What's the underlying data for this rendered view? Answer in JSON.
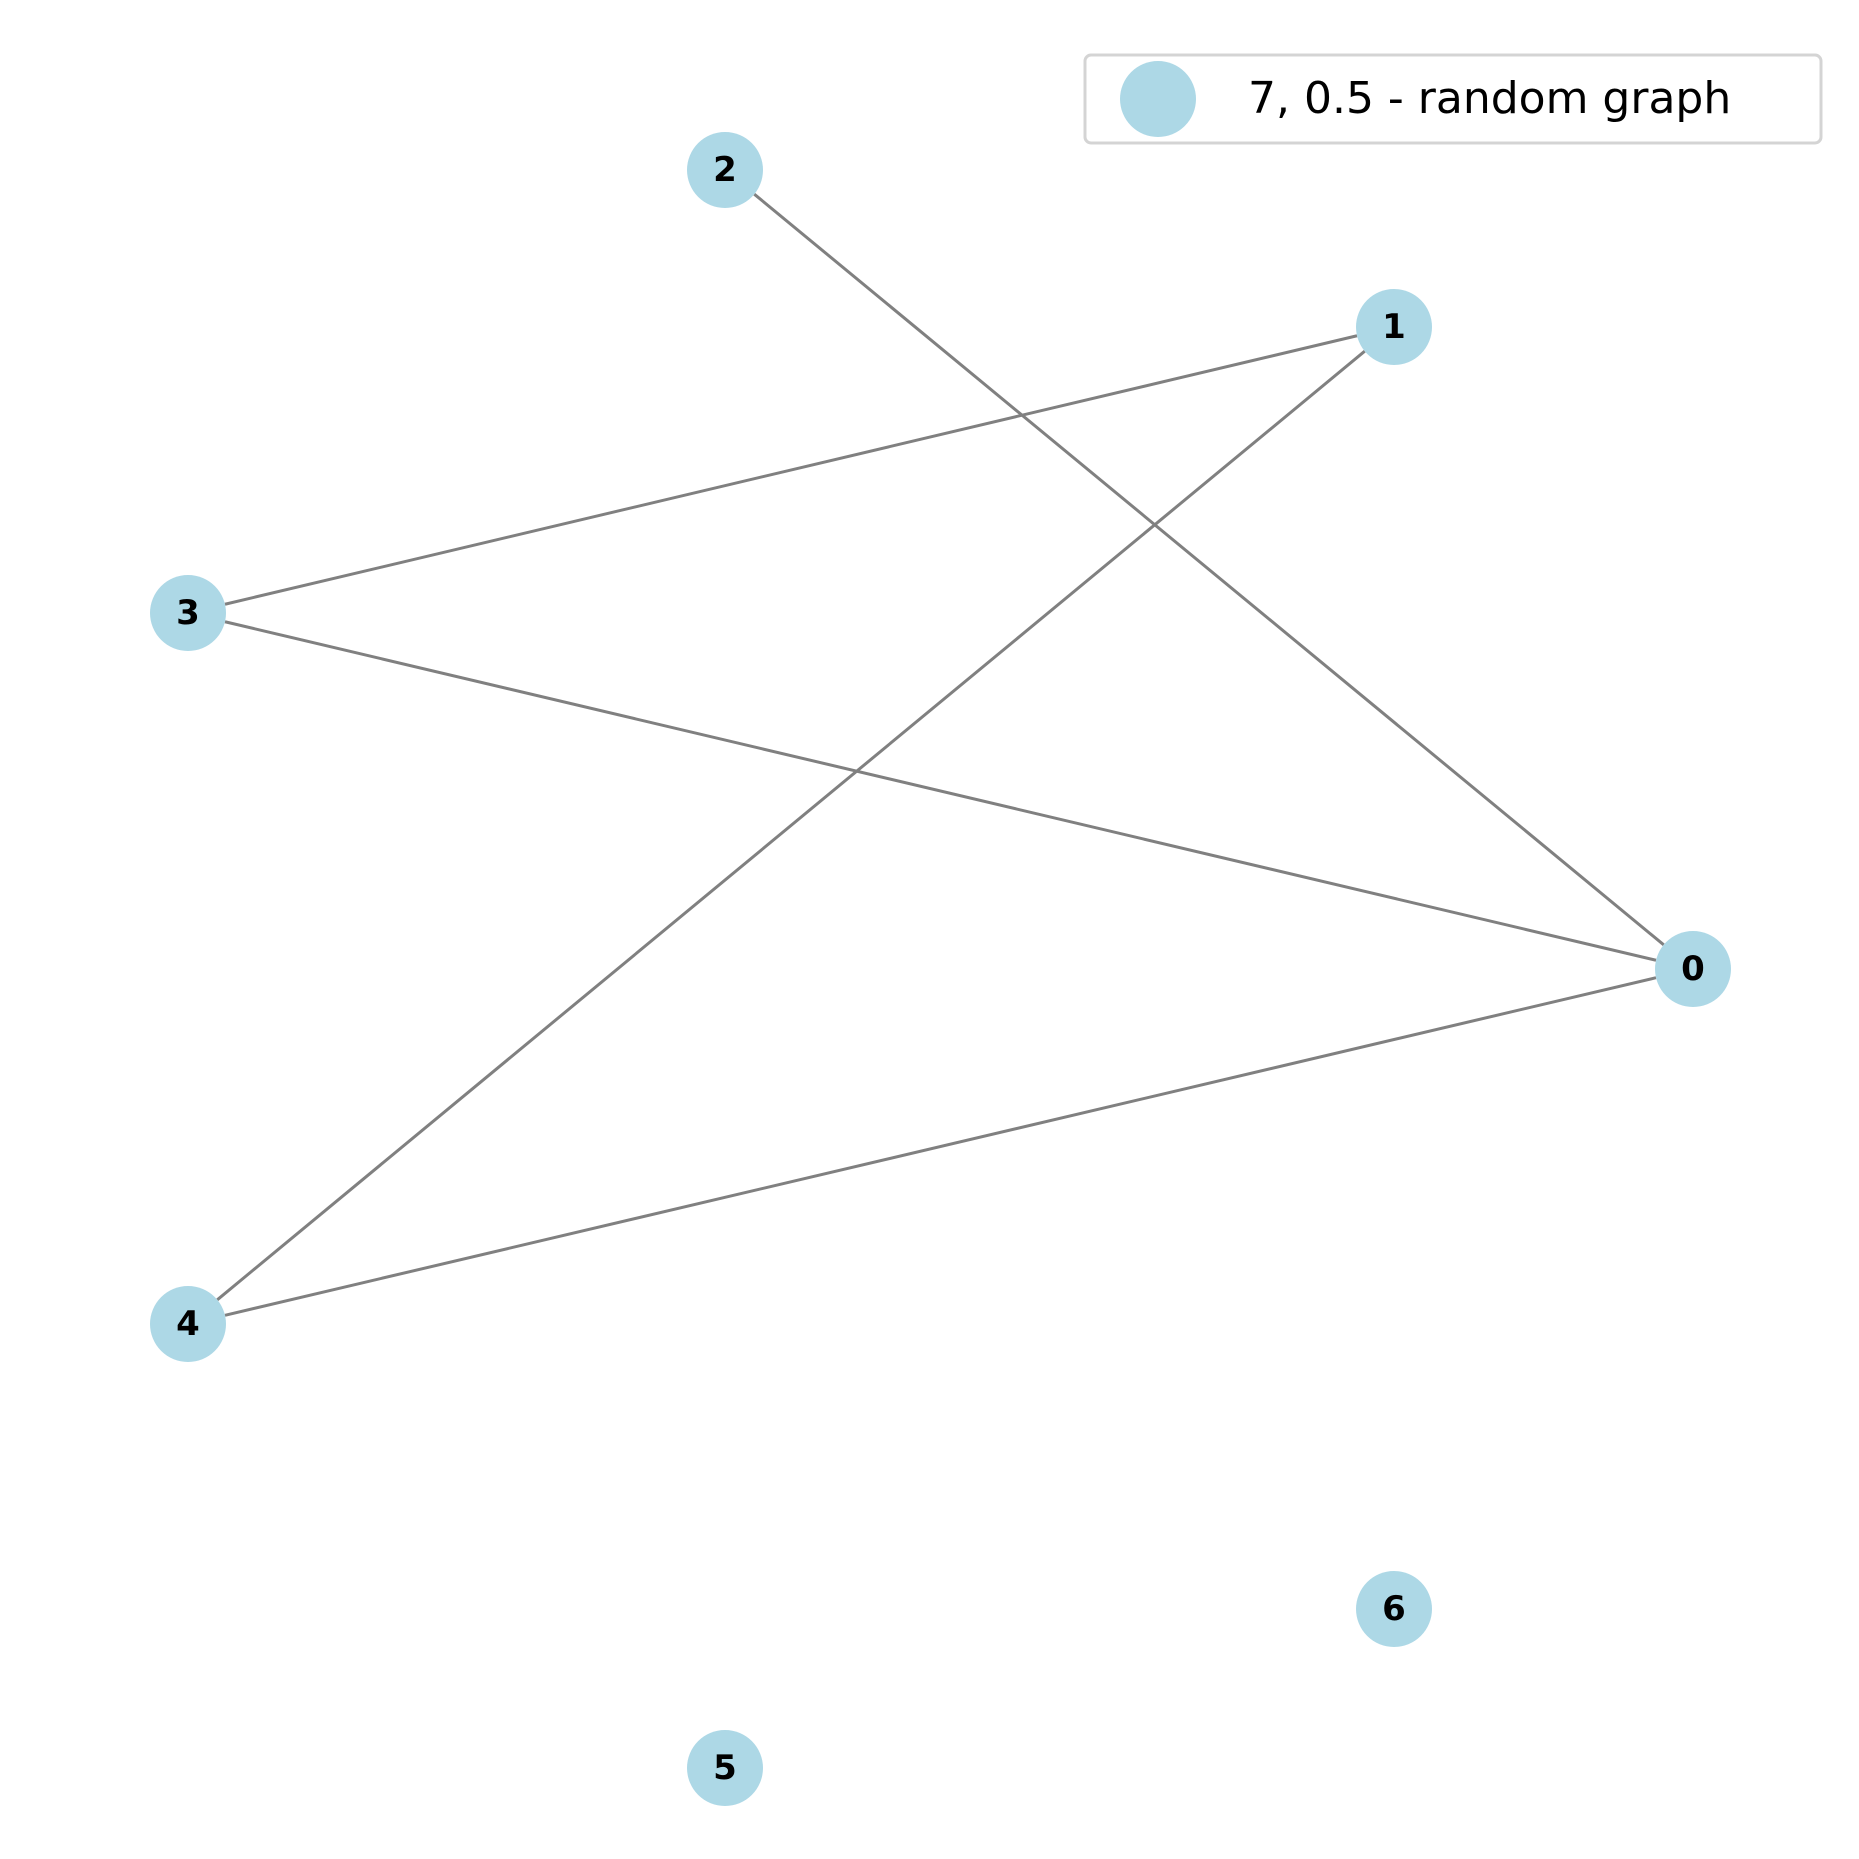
{
  "graph": {
    "node_color": "#add8e6",
    "edge_color": "#808080",
    "label_color": "#000000",
    "nodes": [
      {
        "id": "0",
        "label": "0"
      },
      {
        "id": "1",
        "label": "1"
      },
      {
        "id": "2",
        "label": "2"
      },
      {
        "id": "3",
        "label": "3"
      },
      {
        "id": "4",
        "label": "4"
      },
      {
        "id": "5",
        "label": "5"
      },
      {
        "id": "6",
        "label": "6"
      }
    ],
    "edges": [
      {
        "source": "2",
        "target": "0"
      },
      {
        "source": "3",
        "target": "1"
      },
      {
        "source": "4",
        "target": "1"
      },
      {
        "source": "3",
        "target": "0"
      },
      {
        "source": "4",
        "target": "0"
      }
    ]
  },
  "legend": {
    "label": "7, 0.5 - random graph",
    "placement": "top-right"
  }
}
